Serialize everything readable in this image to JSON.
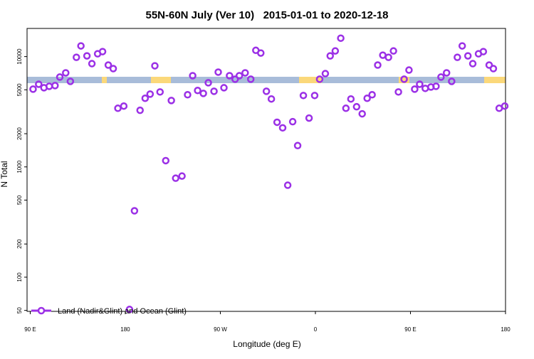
{
  "chart_data": {
    "type": "scatter",
    "title": "55N-60N July (Ver 10)   2015-01-01 to 2020-12-18",
    "x_label": "Longitude (deg E)",
    "y_label": "N Total",
    "y_log": true,
    "legend_position": "bottom-left",
    "xlim": [
      87,
      540
    ],
    "ylim": [
      49,
      18000
    ],
    "xticks": [
      {
        "value": 90,
        "label": "90 E"
      },
      {
        "value": 180,
        "label": "180"
      },
      {
        "value": 270,
        "label": "90 W"
      },
      {
        "value": 360,
        "label": "0"
      },
      {
        "value": 450,
        "label": "90 E"
      },
      {
        "value": 540,
        "label": "180"
      }
    ],
    "yticks": [
      50,
      100,
      200,
      500,
      1000,
      2000,
      5000,
      10000
    ],
    "x": [
      92.7,
      98,
      103,
      108,
      113.5,
      118,
      123.6,
      128,
      133.7,
      138,
      143.7,
      148.4,
      153.8,
      158.5,
      163.9,
      168.6,
      173,
      178.6,
      184,
      188.7,
      194,
      198.8,
      203.5,
      208,
      212.9,
      218.3,
      223.6,
      227.7,
      233.7,
      239,
      243.8,
      248.5,
      253.9,
      258.6,
      264,
      268,
      273.4,
      278.7,
      284,
      288,
      293.5,
      298.8,
      303.6,
      308.3,
      313.6,
      318.3,
      323.7,
      329,
      333.8,
      338.5,
      343.2,
      348.6,
      354,
      359.3,
      364,
      369.4,
      374,
      378.8,
      384,
      388.9,
      393.6,
      399,
      404.3,
      409,
      413.7,
      419,
      423.8,
      429.2,
      433.9,
      438.6,
      444,
      448.6,
      454,
      458.7,
      464,
      469.4,
      474.2,
      478.9,
      484.2,
      489,
      494.4,
      499,
      504.4,
      509,
      514.4,
      519,
      524.5,
      528.5,
      534,
      539.3
    ],
    "series": [
      {
        "name": "Land (Nadir&Glint) and Ocean (Glint)",
        "color": "#9b30e6",
        "values": [
          5070,
          5620,
          5220,
          5380,
          5460,
          6520,
          7120,
          5960,
          9850,
          12500,
          10150,
          8630,
          10600,
          11100,
          8380,
          7780,
          3400,
          3560,
          51,
          400,
          3260,
          4190,
          4570,
          8250,
          4780,
          1140,
          4000,
          790,
          826,
          4510,
          6710,
          4930,
          4640,
          5790,
          4850,
          7230,
          5220,
          6710,
          6240,
          6710,
          7120,
          6240,
          11400,
          10770,
          4850,
          4130,
          2540,
          2260,
          682,
          2570,
          1560,
          4440,
          2770,
          4440,
          6240,
          7010,
          10150,
          11250,
          14690,
          3400,
          4130,
          3510,
          3030,
          4190,
          4510,
          8380,
          10300,
          9850,
          11250,
          4780,
          6240,
          7550,
          5070,
          5620,
          5150,
          5300,
          5380,
          6520,
          7120,
          5960,
          9850,
          12500,
          10150,
          8630,
          10600,
          11100,
          8380,
          7780,
          3400,
          3560
        ]
      }
    ]
  }
}
